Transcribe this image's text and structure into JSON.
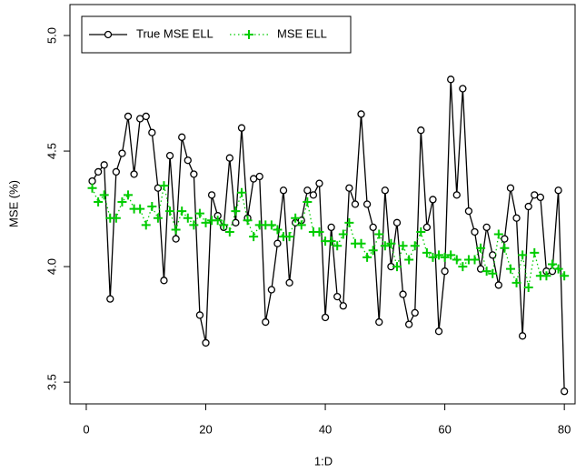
{
  "chart_data": {
    "type": "line",
    "xlabel": "1:D",
    "ylabel": "MSE (%)",
    "x": [
      1,
      2,
      3,
      4,
      5,
      6,
      7,
      8,
      9,
      10,
      11,
      12,
      13,
      14,
      15,
      16,
      17,
      18,
      19,
      20,
      21,
      22,
      23,
      24,
      25,
      26,
      27,
      28,
      29,
      30,
      31,
      32,
      33,
      34,
      35,
      36,
      37,
      38,
      39,
      40,
      41,
      42,
      43,
      44,
      45,
      46,
      47,
      48,
      49,
      50,
      51,
      52,
      53,
      54,
      55,
      56,
      57,
      58,
      59,
      60,
      61,
      62,
      63,
      64,
      65,
      66,
      67,
      68,
      69,
      70,
      71,
      72,
      73,
      74,
      75,
      76,
      77,
      78,
      79,
      80
    ],
    "series": [
      {
        "name": "True MSE ELL",
        "color": "#000000",
        "marker": "circle",
        "linestyle": "solid",
        "values": [
          4.37,
          4.41,
          4.44,
          3.86,
          4.41,
          4.49,
          4.65,
          4.4,
          4.64,
          4.65,
          4.58,
          4.34,
          3.94,
          4.48,
          4.12,
          4.56,
          4.46,
          4.4,
          3.79,
          3.67,
          4.31,
          4.22,
          4.17,
          4.47,
          4.19,
          4.6,
          4.21,
          4.38,
          4.39,
          3.76,
          3.9,
          4.1,
          4.33,
          3.93,
          4.19,
          4.2,
          4.33,
          4.31,
          4.36,
          3.78,
          4.17,
          3.87,
          3.83,
          4.34,
          4.27,
          4.66,
          4.27,
          4.17,
          3.76,
          4.33,
          4.0,
          4.19,
          3.88,
          3.75,
          3.8,
          4.59,
          4.17,
          4.29,
          3.72,
          3.98,
          4.81,
          4.31,
          4.77,
          4.24,
          4.15,
          3.99,
          4.17,
          4.05,
          3.92,
          4.12,
          4.34,
          4.21,
          3.7,
          4.26,
          4.31,
          4.3,
          3.98,
          3.98,
          4.33,
          3.46
        ]
      },
      {
        "name": "MSE ELL",
        "color": "#00cc00",
        "marker": "plus",
        "linestyle": "dotted",
        "values": [
          4.34,
          4.28,
          4.31,
          4.21,
          4.21,
          4.28,
          4.31,
          4.25,
          4.25,
          4.18,
          4.26,
          4.21,
          4.35,
          4.24,
          4.16,
          4.24,
          4.21,
          4.18,
          4.23,
          4.19,
          4.2,
          4.2,
          4.18,
          4.15,
          4.24,
          4.32,
          4.2,
          4.13,
          4.18,
          4.18,
          4.18,
          4.16,
          4.13,
          4.13,
          4.21,
          4.18,
          4.28,
          4.15,
          4.15,
          4.11,
          4.11,
          4.09,
          4.14,
          4.19,
          4.1,
          4.1,
          4.04,
          4.07,
          4.14,
          4.09,
          4.1,
          4.0,
          4.09,
          4.03,
          4.09,
          4.15,
          4.06,
          4.04,
          4.05,
          4.04,
          4.05,
          4.03,
          4.0,
          4.03,
          4.03,
          4.08,
          3.98,
          3.97,
          4.14,
          4.08,
          3.99,
          3.93,
          4.05,
          3.91,
          4.06,
          3.96,
          3.96,
          4.01,
          3.99,
          3.96
        ]
      }
    ],
    "xlim": [
      -2.73,
      81.8
    ],
    "ylim": [
      3.406,
      5.134
    ],
    "xticks": [
      0,
      20,
      40,
      60,
      80
    ],
    "yticks": [
      3.5,
      {
        "value": 4.0,
        "label": "4.0"
      },
      4.5,
      {
        "value": 5.0,
        "label": "5.0"
      }
    ],
    "legend": "top-left",
    "grid": false
  }
}
